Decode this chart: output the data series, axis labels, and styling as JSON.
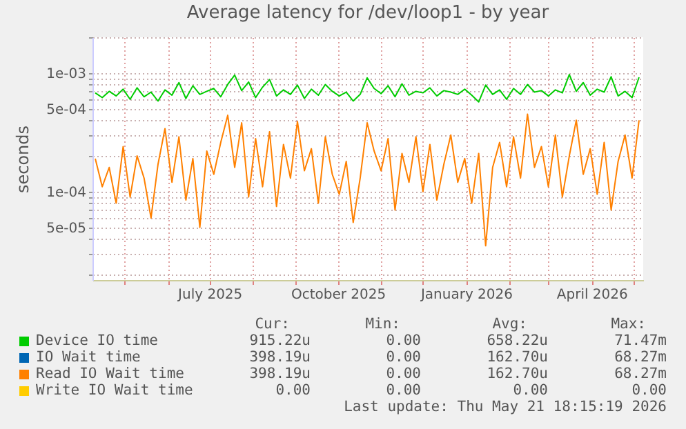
{
  "chart_data": {
    "type": "line",
    "title": "Average latency for /dev/loop1 - by year",
    "ylabel": "seconds",
    "log": "y",
    "grid": true,
    "legend": "bottom",
    "x": [
      "2025-04-10",
      "2025-04-15",
      "2025-04-20",
      "2025-04-25",
      "2025-04-30",
      "2025-05-05",
      "2025-05-10",
      "2025-05-15",
      "2025-05-20",
      "2025-05-25",
      "2025-05-30",
      "2025-06-04",
      "2025-06-09",
      "2025-06-14",
      "2025-06-19",
      "2025-06-24",
      "2025-06-29",
      "2025-07-04",
      "2025-07-09",
      "2025-07-14",
      "2025-07-19",
      "2025-07-24",
      "2025-07-29",
      "2025-08-03",
      "2025-08-08",
      "2025-08-13",
      "2025-08-18",
      "2025-08-23",
      "2025-08-28",
      "2025-09-02",
      "2025-09-07",
      "2025-09-12",
      "2025-09-17",
      "2025-09-22",
      "2025-09-27",
      "2025-10-02",
      "2025-10-07",
      "2025-10-12",
      "2025-10-17",
      "2025-10-22",
      "2025-10-27",
      "2025-11-01",
      "2025-11-06",
      "2025-11-11",
      "2025-11-16",
      "2025-11-21",
      "2025-11-26",
      "2025-12-01",
      "2025-12-06",
      "2025-12-11",
      "2025-12-16",
      "2025-12-21",
      "2025-12-26",
      "2025-12-31",
      "2026-01-05",
      "2026-01-10",
      "2026-01-15",
      "2026-01-20",
      "2026-01-25",
      "2026-01-30",
      "2026-02-04",
      "2026-02-09",
      "2026-02-14",
      "2026-02-19",
      "2026-02-24",
      "2026-03-01",
      "2026-03-06",
      "2026-03-11",
      "2026-03-16",
      "2026-03-21",
      "2026-03-26",
      "2026-03-31",
      "2026-04-05",
      "2026-04-10",
      "2026-04-15",
      "2026-04-20",
      "2026-04-25",
      "2026-04-30",
      "2026-05-05"
    ],
    "xlim": [
      "2025-04-08",
      "2026-05-08"
    ],
    "xticks": [
      {
        "value": "2025-05-01",
        "label": null
      },
      {
        "value": "2025-06-01",
        "label": null
      },
      {
        "value": "2025-07-01",
        "label": "July 2025"
      },
      {
        "value": "2025-08-01",
        "label": null
      },
      {
        "value": "2025-09-01",
        "label": null
      },
      {
        "value": "2025-10-01",
        "label": "October 2025"
      },
      {
        "value": "2025-11-01",
        "label": null
      },
      {
        "value": "2025-12-01",
        "label": null
      },
      {
        "value": "2026-01-01",
        "label": "January 2026"
      },
      {
        "value": "2026-02-01",
        "label": null
      },
      {
        "value": "2026-03-01",
        "label": null
      },
      {
        "value": "2026-04-01",
        "label": "April 2026"
      },
      {
        "value": "2026-05-01",
        "label": null
      }
    ],
    "ylim": [
      1.8e-05,
      0.002
    ],
    "yticks": [
      {
        "value": 2e-05,
        "label": null
      },
      {
        "value": 3e-05,
        "label": null
      },
      {
        "value": 4e-05,
        "label": null
      },
      {
        "value": 5e-05,
        "label": "5e-05"
      },
      {
        "value": 6e-05,
        "label": null
      },
      {
        "value": 7e-05,
        "label": null
      },
      {
        "value": 8e-05,
        "label": null
      },
      {
        "value": 9e-05,
        "label": null
      },
      {
        "value": 0.0001,
        "label": "1e-04"
      },
      {
        "value": 0.0002,
        "label": null
      },
      {
        "value": 0.0003,
        "label": null
      },
      {
        "value": 0.0004,
        "label": null
      },
      {
        "value": 0.0005,
        "label": "5e-04"
      },
      {
        "value": 0.0006,
        "label": null
      },
      {
        "value": 0.0007,
        "label": null
      },
      {
        "value": 0.0008,
        "label": null
      },
      {
        "value": 0.0009,
        "label": null
      },
      {
        "value": 0.001,
        "label": "1e-03"
      },
      {
        "value": 0.002,
        "label": null
      }
    ],
    "series": [
      {
        "name": "Device IO time",
        "color": "#00cc00",
        "values": [
          0.00068,
          0.00062,
          0.0007,
          0.00064,
          0.00073,
          0.0006,
          0.00075,
          0.00063,
          0.00069,
          0.00058,
          0.00072,
          0.00065,
          0.00083,
          0.00061,
          0.00078,
          0.00066,
          0.0007,
          0.00074,
          0.00063,
          0.0008,
          0.00096,
          0.00071,
          0.00084,
          0.00062,
          0.00076,
          0.00088,
          0.00064,
          0.00072,
          0.00066,
          0.00079,
          0.00061,
          0.00073,
          0.00065,
          0.0008,
          0.0007,
          0.00064,
          0.00069,
          0.00058,
          0.00066,
          0.00091,
          0.00074,
          0.00067,
          0.00078,
          0.00063,
          0.00081,
          0.00065,
          0.0007,
          0.00068,
          0.00075,
          0.00064,
          0.00071,
          0.00069,
          0.00066,
          0.00073,
          0.00065,
          0.00057,
          0.00079,
          0.00066,
          0.00072,
          0.0006,
          0.00074,
          0.00066,
          0.0008,
          0.00069,
          0.00071,
          0.00064,
          0.00072,
          0.00068,
          0.00097,
          0.0007,
          0.00083,
          0.00065,
          0.00073,
          0.00069,
          0.00093,
          0.00064,
          0.0007,
          0.00062,
          0.00092
        ]
      },
      {
        "name": "IO Wait time",
        "color": "#0066b3",
        "values": [
          null,
          null,
          null,
          null,
          null,
          null,
          null,
          null,
          null,
          null,
          null,
          null,
          null,
          null,
          null,
          null,
          null,
          null,
          null,
          null,
          null,
          null,
          null,
          null,
          null,
          null,
          null,
          null,
          null,
          null,
          null,
          null,
          null,
          null,
          null,
          null,
          null,
          null,
          null,
          null,
          null,
          null,
          null,
          null,
          null,
          null,
          null,
          null,
          null,
          null,
          null,
          null,
          null,
          null,
          null,
          null,
          null,
          null,
          null,
          null,
          null,
          null,
          null,
          null,
          null,
          null,
          null,
          null,
          null,
          null,
          null,
          null,
          null,
          null,
          null,
          null,
          null,
          null,
          null
        ]
      },
      {
        "name": "Read IO Wait time",
        "color": "#ff8000",
        "values": [
          0.00019,
          0.00011,
          0.00016,
          8e-05,
          0.00024,
          9e-05,
          0.0002,
          0.00013,
          6e-05,
          0.00017,
          0.00034,
          0.00012,
          0.00029,
          8.5e-05,
          0.00019,
          5e-05,
          0.00022,
          0.00014,
          0.00026,
          0.00044,
          0.00016,
          0.00038,
          9e-05,
          0.00028,
          0.00011,
          0.00032,
          7.5e-05,
          0.00025,
          0.00013,
          0.00039,
          0.00015,
          0.00023,
          8e-05,
          0.00029,
          0.00014,
          9.5e-05,
          0.00018,
          5.5e-05,
          0.00013,
          0.00038,
          0.00022,
          0.00015,
          0.00028,
          7e-05,
          0.00021,
          0.00012,
          0.00029,
          0.0001,
          0.00025,
          8.5e-05,
          0.00017,
          0.0003,
          0.00012,
          0.00019,
          8e-05,
          0.00021,
          3.5e-05,
          0.00016,
          0.00026,
          0.00011,
          0.00029,
          0.00013,
          0.00045,
          0.00016,
          0.00024,
          0.00011,
          0.0003,
          9e-05,
          0.0002,
          0.0004,
          0.00014,
          0.00023,
          9.5e-05,
          0.00026,
          7e-05,
          0.00018,
          0.0003,
          0.00013,
          0.0004
        ]
      },
      {
        "name": "Write IO Wait time",
        "color": "#ffcc00",
        "values": [
          null,
          null,
          null,
          null,
          null,
          null,
          null,
          null,
          null,
          null,
          null,
          null,
          null,
          null,
          null,
          null,
          null,
          null,
          null,
          null,
          null,
          null,
          null,
          null,
          null,
          null,
          null,
          null,
          null,
          null,
          null,
          null,
          null,
          null,
          null,
          null,
          null,
          null,
          null,
          null,
          null,
          null,
          null,
          null,
          null,
          null,
          null,
          null,
          null,
          null,
          null,
          null,
          null,
          null,
          null,
          null,
          null,
          null,
          null,
          null,
          null,
          null,
          null,
          null,
          null,
          null,
          null,
          null,
          null,
          null,
          null,
          null,
          null,
          null,
          null,
          null,
          null,
          null,
          null
        ]
      }
    ],
    "annotations": [
      "Cur:",
      "Min:",
      "Avg:",
      "Max:",
      "915.22u",
      "0.00",
      "658.22u",
      "71.47m",
      "398.19u",
      "0.00",
      "162.70u",
      "68.27m",
      "398.19u",
      "0.00",
      "162.70u",
      "68.27m",
      "0.00",
      "0.00",
      "0.00",
      "0.00",
      "Last update: Thu May 21 18:15:19 2026"
    ]
  }
}
